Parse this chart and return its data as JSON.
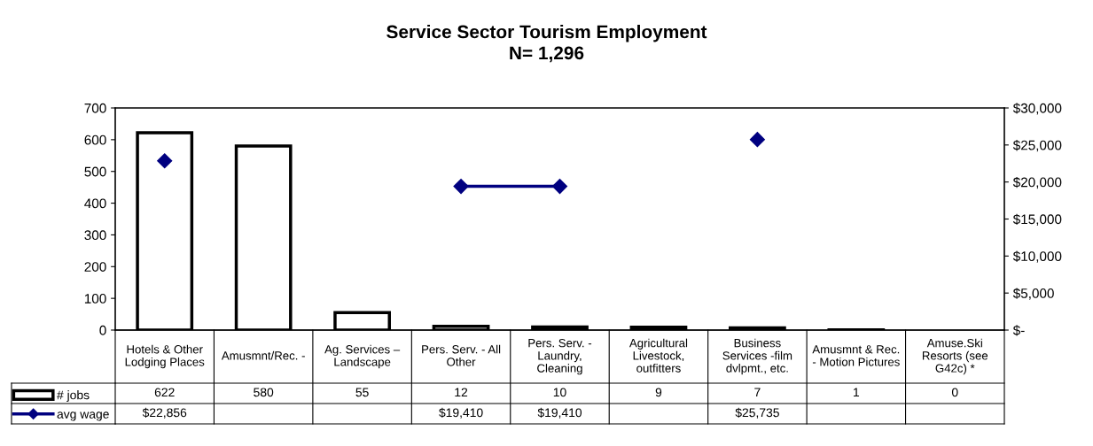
{
  "chart_data": {
    "type": "bar",
    "title": "Service Sector Tourism Employment\nN= 1,296",
    "categories": [
      "Hotels & Other\nLodging Places",
      "Amusmnt/Rec. -",
      "Ag. Services –\nLandscape",
      "Pers. Serv. - All\nOther",
      "Pers. Serv. -\nLaundry,\nCleaning",
      "Agricultural\nLivestock,\noutfitters",
      "Business\nServices -film\ndvlpmt., etc.",
      "Amusmnt & Rec.\n- Motion Pictures",
      "Amuse.Ski\nResorts (see\nG42c) *"
    ],
    "series": [
      {
        "name": "# jobs",
        "color": "#ffffff",
        "values": [
          622,
          580,
          55,
          12,
          10,
          9,
          7,
          1,
          0
        ]
      },
      {
        "name": "avg wage",
        "type": "line",
        "axis": "y2",
        "color": "#000080",
        "marker": "diamond",
        "values": [
          22856,
          null,
          null,
          19410,
          19410,
          null,
          25735,
          null,
          null
        ],
        "value_labels": [
          "$22,856",
          null,
          null,
          "$19,410",
          "$19,410",
          null,
          "$25,735",
          null,
          null
        ]
      }
    ],
    "data_labels": true,
    "ylim": [
      0,
      700
    ],
    "yticks": [
      0,
      100,
      200,
      300,
      400,
      500,
      600,
      700
    ],
    "y2lim": [
      0,
      30000
    ],
    "y2ticks": [
      {
        "value": 0,
        "label": "$-"
      },
      {
        "value": 5000,
        "label": "$5,000"
      },
      {
        "value": 10000,
        "label": "$10,000"
      },
      {
        "value": 15000,
        "label": "$15,000"
      },
      {
        "value": 20000,
        "label": "$20,000"
      },
      {
        "value": 25000,
        "label": "$25,000"
      },
      {
        "value": 30000,
        "label": "$30,000"
      }
    ],
    "grid": false,
    "legend": "bottom left"
  }
}
